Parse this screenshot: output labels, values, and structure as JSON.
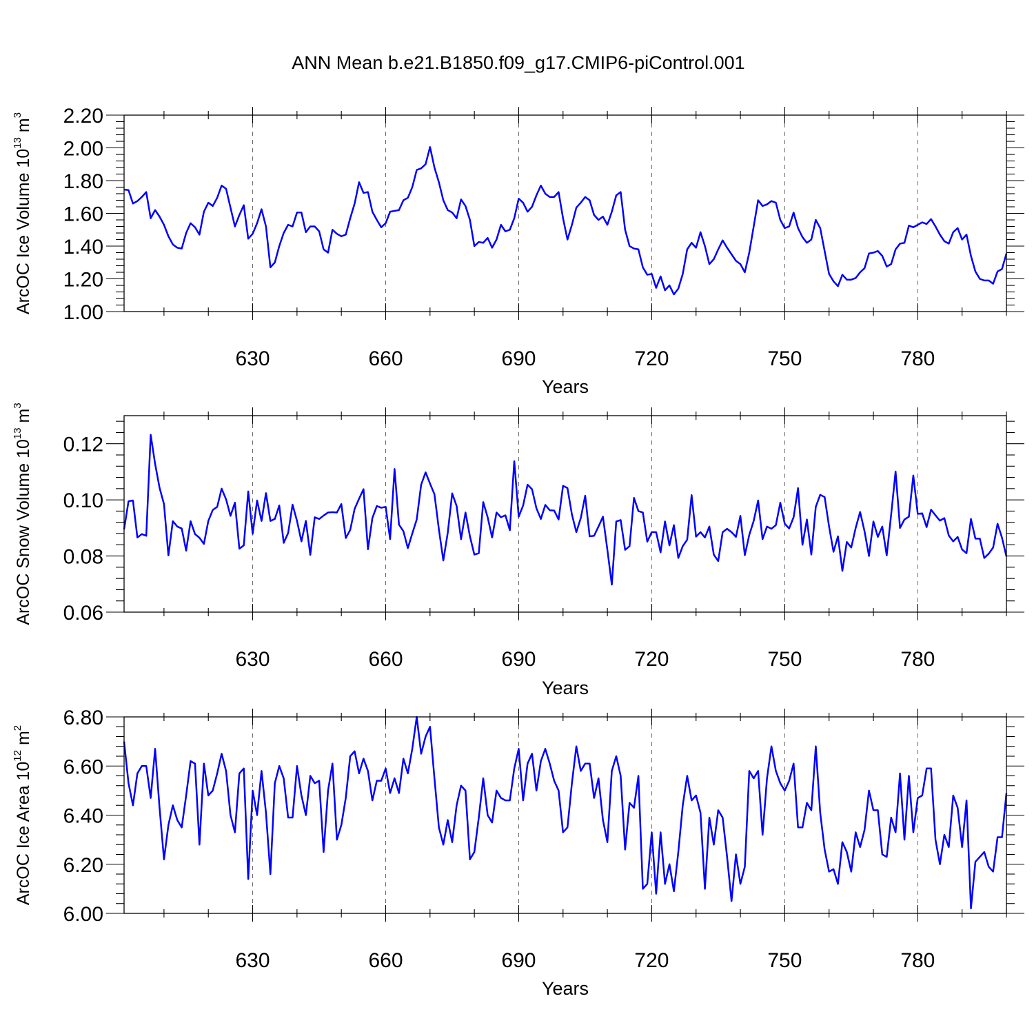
{
  "chart_data": {
    "type": "line",
    "title": "ANN Mean b.e21.B1850.f09_g17.CMIP6-piControl.001",
    "x_start": 601,
    "x_end": 800,
    "x_step": 1,
    "xlim": [
      601,
      800
    ],
    "xticks": [
      630,
      660,
      690,
      720,
      750,
      780
    ],
    "xtick_labels": [
      "630",
      "660",
      "690",
      "720",
      "750",
      "780"
    ],
    "xlabel": "Years",
    "grid": "vertical dashed at major x ticks",
    "line_color": "#0000ff",
    "panels": [
      {
        "name": "ice-volume",
        "ylabel_main": "ArcOC Ice Volume 10",
        "ylabel_exp": "13",
        "ylabel_unit": " m",
        "ylabel_unit_exp": "3",
        "ylim": [
          1.0,
          2.2
        ],
        "yticks": [
          1.0,
          1.2,
          1.4,
          1.6,
          1.8,
          2.0,
          2.2
        ],
        "ytick_labels": [
          "1.00",
          "1.20",
          "1.40",
          "1.60",
          "1.80",
          "2.00",
          "2.20"
        ],
        "values": [
          1.745,
          1.742,
          1.66,
          1.675,
          1.7,
          1.73,
          1.57,
          1.62,
          1.58,
          1.53,
          1.46,
          1.41,
          1.39,
          1.385,
          1.48,
          1.54,
          1.515,
          1.47,
          1.61,
          1.665,
          1.645,
          1.695,
          1.77,
          1.75,
          1.635,
          1.52,
          1.59,
          1.65,
          1.445,
          1.475,
          1.54,
          1.625,
          1.52,
          1.27,
          1.3,
          1.4,
          1.48,
          1.53,
          1.52,
          1.605,
          1.605,
          1.485,
          1.52,
          1.52,
          1.49,
          1.38,
          1.36,
          1.5,
          1.475,
          1.46,
          1.47,
          1.57,
          1.66,
          1.79,
          1.725,
          1.73,
          1.61,
          1.56,
          1.515,
          1.54,
          1.61,
          1.615,
          1.62,
          1.68,
          1.695,
          1.76,
          1.865,
          1.875,
          1.9,
          2.005,
          1.88,
          1.79,
          1.68,
          1.62,
          1.605,
          1.57,
          1.685,
          1.645,
          1.56,
          1.4,
          1.425,
          1.42,
          1.45,
          1.39,
          1.44,
          1.53,
          1.49,
          1.5,
          1.57,
          1.69,
          1.665,
          1.61,
          1.64,
          1.71,
          1.77,
          1.72,
          1.7,
          1.7,
          1.73,
          1.57,
          1.44,
          1.53,
          1.635,
          1.665,
          1.7,
          1.68,
          1.59,
          1.56,
          1.58,
          1.53,
          1.61,
          1.71,
          1.73,
          1.5,
          1.4,
          1.385,
          1.38,
          1.27,
          1.225,
          1.23,
          1.145,
          1.215,
          1.13,
          1.16,
          1.105,
          1.14,
          1.23,
          1.38,
          1.42,
          1.39,
          1.485,
          1.4,
          1.29,
          1.32,
          1.38,
          1.435,
          1.39,
          1.35,
          1.31,
          1.29,
          1.24,
          1.36,
          1.52,
          1.68,
          1.645,
          1.655,
          1.675,
          1.665,
          1.56,
          1.51,
          1.52,
          1.605,
          1.51,
          1.455,
          1.42,
          1.44,
          1.56,
          1.51,
          1.37,
          1.23,
          1.185,
          1.155,
          1.225,
          1.195,
          1.195,
          1.205,
          1.24,
          1.265,
          1.355,
          1.36,
          1.37,
          1.34,
          1.275,
          1.29,
          1.38,
          1.415,
          1.42,
          1.525,
          1.515,
          1.53,
          1.545,
          1.535,
          1.565,
          1.52,
          1.47,
          1.43,
          1.415,
          1.485,
          1.51,
          1.44,
          1.47,
          1.34,
          1.245,
          1.2,
          1.19,
          1.19,
          1.17,
          1.245,
          1.26,
          1.355
        ]
      },
      {
        "name": "snow-volume",
        "ylabel_main": "ArcOC Snow Volume 10",
        "ylabel_exp": "13",
        "ylabel_unit": " m",
        "ylabel_unit_exp": "3",
        "ylim": [
          0.06,
          0.13
        ],
        "yticks": [
          0.06,
          0.08,
          0.1,
          0.12
        ],
        "ytick_labels": [
          "0.06",
          "0.08",
          "0.10",
          "0.12"
        ],
        "values": [
          0.0895,
          0.0995,
          0.0998,
          0.0866,
          0.0878,
          0.0872,
          0.1232,
          0.1128,
          0.1043,
          0.0985,
          0.0802,
          0.0924,
          0.0905,
          0.0898,
          0.0819,
          0.0924,
          0.0878,
          0.0865,
          0.0843,
          0.0925,
          0.0964,
          0.0975,
          0.104,
          0.1002,
          0.0943,
          0.099,
          0.0826,
          0.0838,
          0.103,
          0.0879,
          0.0998,
          0.0925,
          0.1024,
          0.0925,
          0.0932,
          0.098,
          0.0847,
          0.0882,
          0.0983,
          0.0925,
          0.0852,
          0.0925,
          0.0804,
          0.0938,
          0.0932,
          0.0944,
          0.0955,
          0.0956,
          0.0955,
          0.0985,
          0.0864,
          0.0893,
          0.0968,
          0.1004,
          0.1038,
          0.0824,
          0.0935,
          0.0978,
          0.0972,
          0.0975,
          0.086,
          0.111,
          0.0912,
          0.0888,
          0.0828,
          0.088,
          0.093,
          0.1054,
          0.1098,
          0.1058,
          0.102,
          0.0895,
          0.0784,
          0.0883,
          0.1023,
          0.0978,
          0.086,
          0.0955,
          0.087,
          0.0805,
          0.081,
          0.0992,
          0.0938,
          0.0866,
          0.0955,
          0.0938,
          0.0945,
          0.0892,
          0.1138,
          0.094,
          0.098,
          0.1054,
          0.1038,
          0.097,
          0.0932,
          0.0982,
          0.0963,
          0.0962,
          0.093,
          0.105,
          0.1042,
          0.0948,
          0.0885,
          0.0935,
          0.1015,
          0.087,
          0.0872,
          0.0905,
          0.094,
          0.0822,
          0.0698,
          0.0923,
          0.0928,
          0.0822,
          0.0835,
          0.1007,
          0.096,
          0.0955,
          0.0851,
          0.0885,
          0.0885,
          0.0813,
          0.0923,
          0.0838,
          0.091,
          0.0793,
          0.0835,
          0.0858,
          0.1017,
          0.0869,
          0.0885,
          0.0866,
          0.0905,
          0.0805,
          0.0782,
          0.0885,
          0.0897,
          0.0885,
          0.0868,
          0.0943,
          0.0803,
          0.0875,
          0.0925,
          0.0998,
          0.086,
          0.0905,
          0.0897,
          0.091,
          0.099,
          0.0915,
          0.0898,
          0.0938,
          0.1042,
          0.084,
          0.093,
          0.0805,
          0.0975,
          0.1018,
          0.101,
          0.0905,
          0.0815,
          0.087,
          0.0747,
          0.085,
          0.083,
          0.09,
          0.0957,
          0.0888,
          0.08,
          0.0923,
          0.0868,
          0.0905,
          0.0802,
          0.0947,
          0.1101,
          0.09,
          0.093,
          0.094,
          0.1087,
          0.095,
          0.0952,
          0.0903,
          0.0965,
          0.0945,
          0.0926,
          0.0935,
          0.0873,
          0.0852,
          0.0868,
          0.0823,
          0.081,
          0.0932,
          0.0862,
          0.0862,
          0.0793,
          0.0808,
          0.083,
          0.0915,
          0.0865,
          0.0798
        ]
      },
      {
        "name": "ice-area",
        "ylabel_main": "ArcOC Ice Area 10",
        "ylabel_exp": "12",
        "ylabel_unit": " m",
        "ylabel_unit_exp": "2",
        "ylim": [
          6.0,
          6.8
        ],
        "yticks": [
          6.0,
          6.2,
          6.4,
          6.6,
          6.8
        ],
        "ytick_labels": [
          "6.00",
          "6.20",
          "6.40",
          "6.60",
          "6.80"
        ],
        "values": [
          6.7,
          6.53,
          6.44,
          6.57,
          6.6,
          6.6,
          6.47,
          6.67,
          6.43,
          6.22,
          6.36,
          6.44,
          6.38,
          6.35,
          6.48,
          6.62,
          6.61,
          6.28,
          6.61,
          6.48,
          6.5,
          6.57,
          6.65,
          6.58,
          6.4,
          6.33,
          6.57,
          6.59,
          6.14,
          6.5,
          6.4,
          6.58,
          6.41,
          6.16,
          6.53,
          6.6,
          6.55,
          6.39,
          6.39,
          6.6,
          6.48,
          6.4,
          6.56,
          6.53,
          6.54,
          6.25,
          6.5,
          6.61,
          6.3,
          6.36,
          6.47,
          6.64,
          6.66,
          6.57,
          6.63,
          6.58,
          6.46,
          6.54,
          6.54,
          6.59,
          6.49,
          6.55,
          6.49,
          6.63,
          6.57,
          6.67,
          6.8,
          6.65,
          6.72,
          6.76,
          6.55,
          6.35,
          6.28,
          6.38,
          6.29,
          6.44,
          6.52,
          6.5,
          6.22,
          6.25,
          6.39,
          6.55,
          6.4,
          6.37,
          6.5,
          6.47,
          6.46,
          6.46,
          6.59,
          6.67,
          6.46,
          6.61,
          6.65,
          6.5,
          6.62,
          6.67,
          6.61,
          6.54,
          6.5,
          6.33,
          6.35,
          6.53,
          6.68,
          6.58,
          6.61,
          6.61,
          6.47,
          6.55,
          6.38,
          6.29,
          6.58,
          6.64,
          6.56,
          6.26,
          6.45,
          6.43,
          6.56,
          6.1,
          6.12,
          6.33,
          6.08,
          6.33,
          6.12,
          6.2,
          6.09,
          6.25,
          6.44,
          6.56,
          6.46,
          6.48,
          6.41,
          6.1,
          6.39,
          6.28,
          6.42,
          6.39,
          6.23,
          6.05,
          6.24,
          6.12,
          6.19,
          6.58,
          6.55,
          6.58,
          6.32,
          6.55,
          6.68,
          6.58,
          6.53,
          6.5,
          6.54,
          6.61,
          6.35,
          6.35,
          6.45,
          6.42,
          6.68,
          6.41,
          6.26,
          6.17,
          6.18,
          6.12,
          6.29,
          6.25,
          6.17,
          6.33,
          6.27,
          6.34,
          6.5,
          6.42,
          6.42,
          6.24,
          6.23,
          6.39,
          6.33,
          6.57,
          6.3,
          6.56,
          6.33,
          6.47,
          6.48,
          6.59,
          6.59,
          6.3,
          6.2,
          6.32,
          6.27,
          6.48,
          6.43,
          6.27,
          6.46,
          6.02,
          6.21,
          6.23,
          6.25,
          6.19,
          6.17,
          6.31,
          6.31,
          6.49
        ]
      }
    ]
  }
}
